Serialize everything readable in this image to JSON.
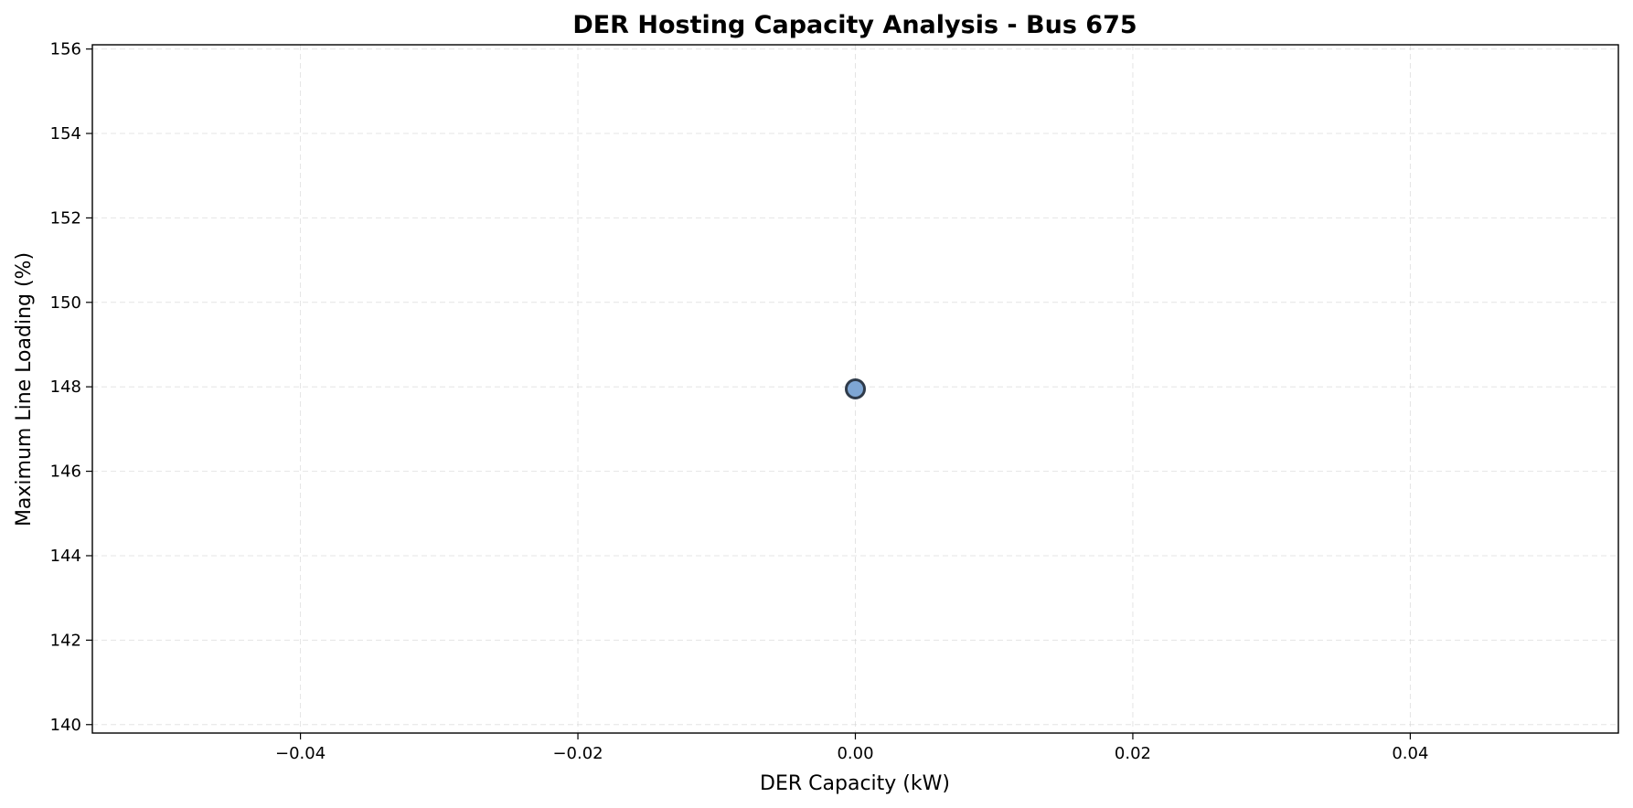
{
  "chart_data": {
    "type": "scatter",
    "title": "DER Hosting Capacity Analysis - Bus 675",
    "xlabel": "DER Capacity (kW)",
    "ylabel": "Maximum Line Loading (%)",
    "xlim": [
      -0.055,
      0.055
    ],
    "ylim": [
      139.8,
      156.1
    ],
    "xticks": [
      -0.04,
      -0.02,
      0.0,
      0.02,
      0.04
    ],
    "xtick_labels": [
      "−0.04",
      "−0.02",
      "0.00",
      "0.02",
      "0.04"
    ],
    "yticks": [
      140,
      142,
      144,
      146,
      148,
      150,
      152,
      154,
      156
    ],
    "ytick_labels": [
      "140",
      "142",
      "144",
      "146",
      "148",
      "150",
      "152",
      "154",
      "156"
    ],
    "grid": true,
    "series": [
      {
        "points": [
          {
            "x": 0.0,
            "y": 147.95
          }
        ],
        "marker_color": "#7ea6d4",
        "edge_color": "#2f3b4a"
      }
    ]
  }
}
